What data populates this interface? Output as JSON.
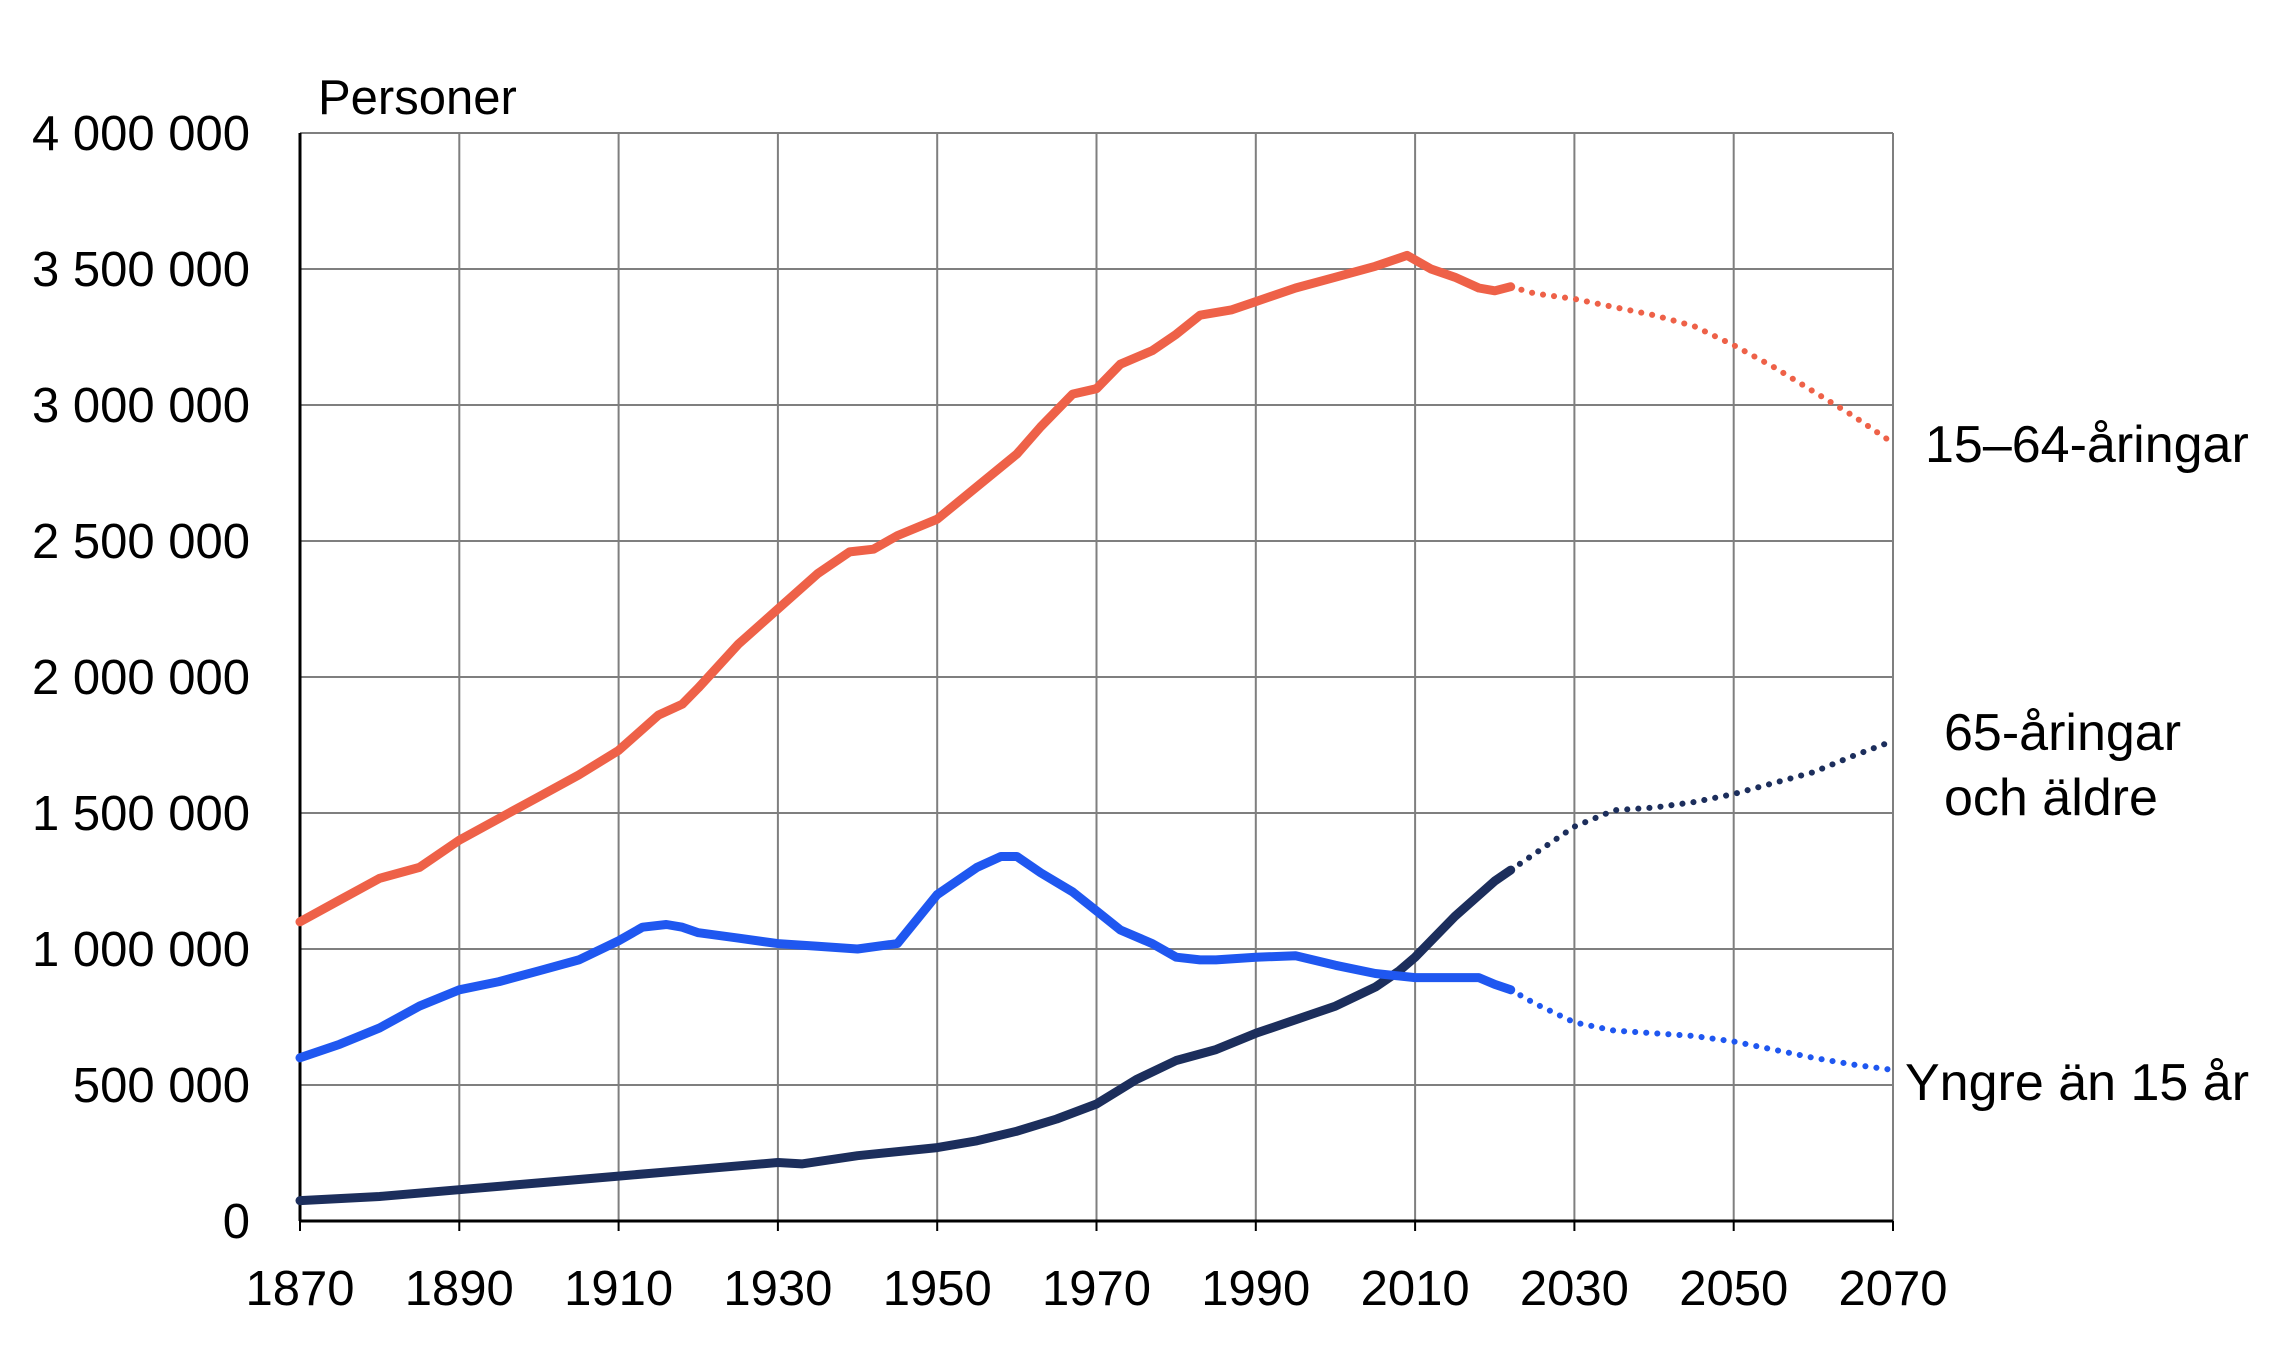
{
  "chart_data": {
    "type": "line",
    "title": "",
    "ylabel": "Personer",
    "xlabel": "",
    "xlim": [
      1870,
      2070
    ],
    "ylim": [
      0,
      4000000
    ],
    "grid": true,
    "x_ticks": [
      "1870",
      "1890",
      "1910",
      "1930",
      "1950",
      "1970",
      "1990",
      "2010",
      "2030",
      "2050",
      "2070"
    ],
    "y_ticks": [
      "0",
      "500 000",
      "1 000 000",
      "1 500 000",
      "2 000 000",
      "2 500 000",
      "3 000 000",
      "3 500 000",
      "4 000 000"
    ],
    "series": [
      {
        "name": "15–64-åringar",
        "label_lines": [
          "15–64-åringar"
        ],
        "color": "#EE6148",
        "observed": [
          [
            1870,
            1100000
          ],
          [
            1875,
            1180000
          ],
          [
            1880,
            1260000
          ],
          [
            1885,
            1300000
          ],
          [
            1890,
            1400000
          ],
          [
            1895,
            1480000
          ],
          [
            1900,
            1560000
          ],
          [
            1905,
            1640000
          ],
          [
            1910,
            1730000
          ],
          [
            1915,
            1860000
          ],
          [
            1918,
            1900000
          ],
          [
            1920,
            1960000
          ],
          [
            1925,
            2120000
          ],
          [
            1930,
            2250000
          ],
          [
            1935,
            2380000
          ],
          [
            1939,
            2460000
          ],
          [
            1942,
            2470000
          ],
          [
            1945,
            2520000
          ],
          [
            1950,
            2580000
          ],
          [
            1955,
            2700000
          ],
          [
            1960,
            2820000
          ],
          [
            1963,
            2920000
          ],
          [
            1967,
            3040000
          ],
          [
            1970,
            3060000
          ],
          [
            1973,
            3150000
          ],
          [
            1977,
            3200000
          ],
          [
            1980,
            3260000
          ],
          [
            1983,
            3330000
          ],
          [
            1987,
            3350000
          ],
          [
            1990,
            3380000
          ],
          [
            1995,
            3430000
          ],
          [
            2000,
            3470000
          ],
          [
            2005,
            3510000
          ],
          [
            2009,
            3550000
          ],
          [
            2012,
            3500000
          ],
          [
            2015,
            3470000
          ],
          [
            2018,
            3430000
          ],
          [
            2020,
            3420000
          ],
          [
            2022,
            3435000
          ]
        ],
        "projected": [
          [
            2022,
            3435000
          ],
          [
            2025,
            3410000
          ],
          [
            2030,
            3390000
          ],
          [
            2035,
            3360000
          ],
          [
            2040,
            3330000
          ],
          [
            2045,
            3290000
          ],
          [
            2050,
            3220000
          ],
          [
            2055,
            3140000
          ],
          [
            2060,
            3050000
          ],
          [
            2065,
            2960000
          ],
          [
            2070,
            2860000
          ]
        ]
      },
      {
        "name": "65-åringar och äldre",
        "label_lines": [
          "65-åringar",
          "och äldre"
        ],
        "color": "#1C2E5C",
        "observed": [
          [
            1870,
            75000
          ],
          [
            1880,
            90000
          ],
          [
            1890,
            115000
          ],
          [
            1900,
            140000
          ],
          [
            1910,
            165000
          ],
          [
            1920,
            190000
          ],
          [
            1930,
            215000
          ],
          [
            1933,
            210000
          ],
          [
            1940,
            240000
          ],
          [
            1950,
            270000
          ],
          [
            1955,
            295000
          ],
          [
            1960,
            330000
          ],
          [
            1965,
            375000
          ],
          [
            1970,
            430000
          ],
          [
            1975,
            520000
          ],
          [
            1980,
            590000
          ],
          [
            1985,
            630000
          ],
          [
            1990,
            690000
          ],
          [
            1995,
            740000
          ],
          [
            2000,
            790000
          ],
          [
            2005,
            860000
          ],
          [
            2008,
            920000
          ],
          [
            2010,
            970000
          ],
          [
            2015,
            1120000
          ],
          [
            2020,
            1250000
          ],
          [
            2022,
            1290000
          ]
        ],
        "projected": [
          [
            2022,
            1290000
          ],
          [
            2025,
            1350000
          ],
          [
            2030,
            1450000
          ],
          [
            2035,
            1510000
          ],
          [
            2040,
            1520000
          ],
          [
            2045,
            1540000
          ],
          [
            2050,
            1570000
          ],
          [
            2055,
            1610000
          ],
          [
            2060,
            1650000
          ],
          [
            2065,
            1710000
          ],
          [
            2070,
            1765000
          ]
        ]
      },
      {
        "name": "Yngre än 15 år",
        "label_lines": [
          "Yngre än 15 år"
        ],
        "color": "#1F57F0",
        "observed": [
          [
            1870,
            600000
          ],
          [
            1875,
            650000
          ],
          [
            1880,
            710000
          ],
          [
            1885,
            790000
          ],
          [
            1890,
            850000
          ],
          [
            1895,
            880000
          ],
          [
            1900,
            920000
          ],
          [
            1905,
            960000
          ],
          [
            1910,
            1030000
          ],
          [
            1913,
            1080000
          ],
          [
            1916,
            1090000
          ],
          [
            1918,
            1080000
          ],
          [
            1920,
            1060000
          ],
          [
            1925,
            1040000
          ],
          [
            1930,
            1020000
          ],
          [
            1935,
            1010000
          ],
          [
            1940,
            1000000
          ],
          [
            1945,
            1020000
          ],
          [
            1950,
            1200000
          ],
          [
            1955,
            1300000
          ],
          [
            1958,
            1340000
          ],
          [
            1960,
            1340000
          ],
          [
            1963,
            1280000
          ],
          [
            1967,
            1210000
          ],
          [
            1970,
            1140000
          ],
          [
            1973,
            1070000
          ],
          [
            1977,
            1020000
          ],
          [
            1980,
            970000
          ],
          [
            1983,
            960000
          ],
          [
            1985,
            960000
          ],
          [
            1990,
            970000
          ],
          [
            1995,
            975000
          ],
          [
            2000,
            940000
          ],
          [
            2005,
            910000
          ],
          [
            2010,
            895000
          ],
          [
            2015,
            895000
          ],
          [
            2018,
            895000
          ],
          [
            2020,
            870000
          ],
          [
            2022,
            850000
          ]
        ],
        "projected": [
          [
            2022,
            850000
          ],
          [
            2025,
            800000
          ],
          [
            2030,
            730000
          ],
          [
            2035,
            700000
          ],
          [
            2040,
            690000
          ],
          [
            2045,
            680000
          ],
          [
            2050,
            660000
          ],
          [
            2055,
            630000
          ],
          [
            2060,
            600000
          ],
          [
            2065,
            575000
          ],
          [
            2070,
            555000
          ]
        ]
      }
    ]
  }
}
